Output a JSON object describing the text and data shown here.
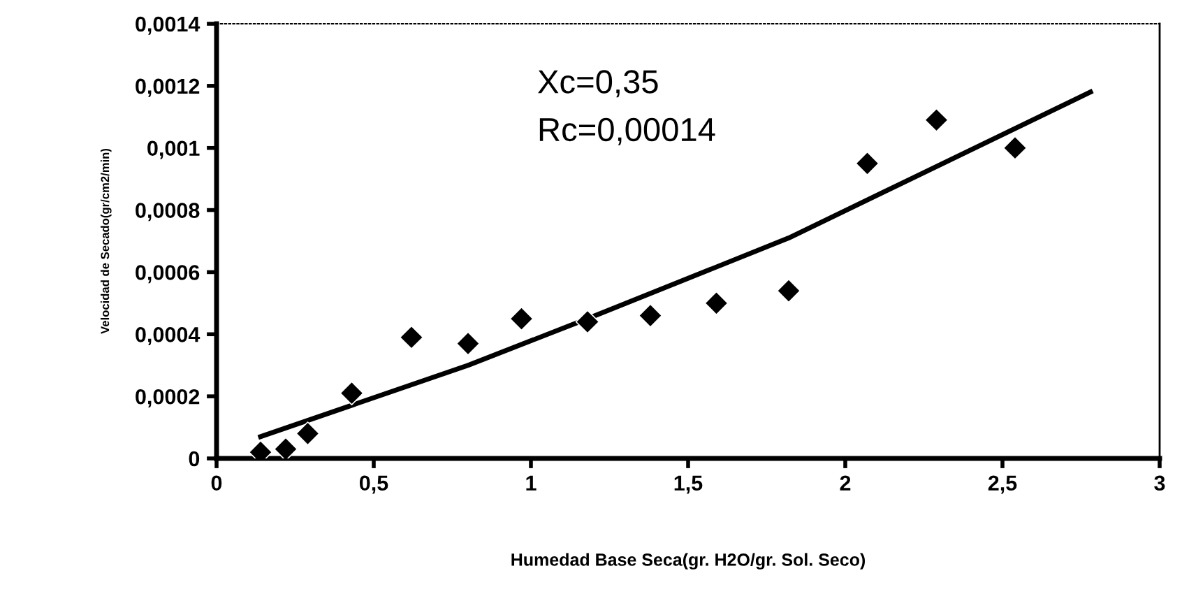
{
  "chart_data": {
    "type": "scatter",
    "xlabel": "Humedad Base Seca(gr. H2O/gr. Sol. Seco)",
    "ylabel": "Velocidad de Secado(gr/cm2/min)",
    "annotations": [
      "Xc=0,35",
      "Rc=0,00014"
    ],
    "series": [
      {
        "color": "#000000",
        "marker": "diamond",
        "x": [
          0.14,
          0.22,
          0.29,
          0.43,
          0.62,
          0.8,
          0.97,
          1.18,
          1.38,
          1.59,
          1.82,
          2.07,
          2.29,
          2.54
        ],
        "values": [
          2e-05,
          3e-05,
          8e-05,
          0.00021,
          0.00039,
          0.00037,
          0.00045,
          0.00044,
          0.00046,
          0.0005,
          0.00054,
          0.00095,
          0.00109,
          0.001
        ]
      },
      {
        "type": "line",
        "color": "#000000",
        "x": [
          0.14,
          0.8,
          1.18,
          1.82,
          2.78
        ],
        "values": [
          7e-05,
          0.0003,
          0.00045,
          0.00071,
          0.00118
        ]
      }
    ],
    "xlim": [
      0,
      3
    ],
    "xticks": [
      0,
      {
        "value": 0.5,
        "label": "0,5"
      },
      1,
      {
        "value": 1.5,
        "label": "1,5"
      },
      2,
      {
        "value": 2.5,
        "label": "2,5"
      },
      3
    ],
    "ylim": [
      0,
      0.0014
    ],
    "yticks": [
      0,
      {
        "value": 0.0002,
        "label": "0,0002"
      },
      {
        "value": 0.0004,
        "label": "0,0004"
      },
      {
        "value": 0.0006,
        "label": "0,0006"
      },
      {
        "value": 0.0008,
        "label": "0,0008"
      },
      {
        "value": 0.001,
        "label": "0,001"
      },
      {
        "value": 0.0012,
        "label": "0,0012"
      },
      {
        "value": 0.0014,
        "label": "0,0014"
      }
    ],
    "grid": false,
    "legend": false
  }
}
